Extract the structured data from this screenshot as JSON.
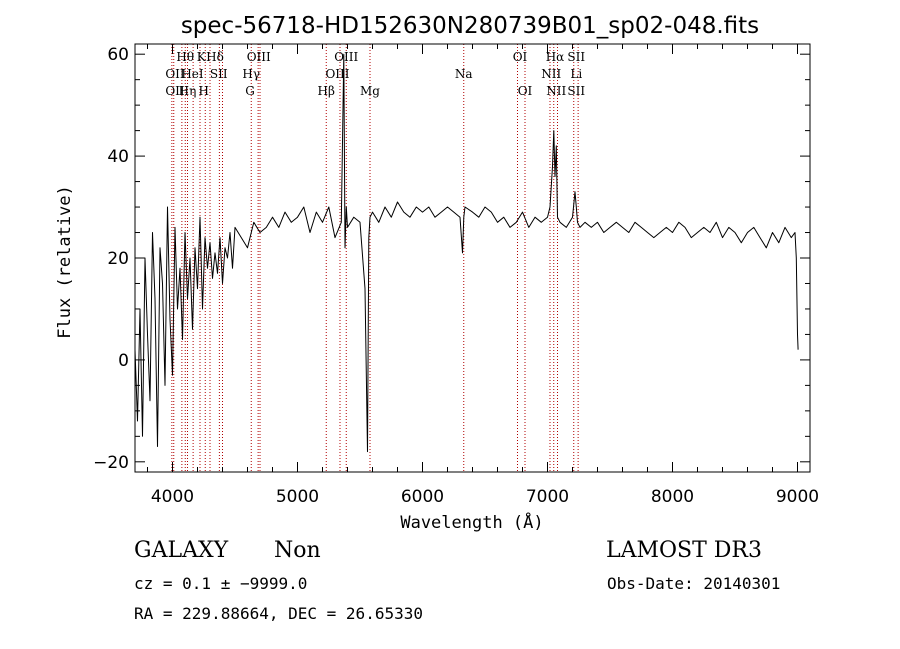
{
  "chart_data": {
    "type": "line",
    "title": "spec-56718-HD152630N280739B01_sp02-048.fits",
    "xlabel": "Wavelength (Å)",
    "ylabel": "Flux (relative)",
    "xlim": [
      3700,
      9100
    ],
    "ylim": [
      -22,
      62
    ],
    "x_ticks": [
      4000,
      5000,
      6000,
      7000,
      8000,
      9000
    ],
    "x_tick_labels": [
      "4000",
      "5000",
      "6000",
      "7000",
      "8000",
      "9000"
    ],
    "y_ticks": [
      -20,
      0,
      20,
      40,
      60
    ],
    "y_tick_labels": [
      "−20",
      "0",
      "20",
      "40",
      "60"
    ],
    "line_color": "#000000",
    "marker_color": "#b00000",
    "spectrum": {
      "x": [
        3700,
        3720,
        3740,
        3760,
        3780,
        3800,
        3820,
        3840,
        3860,
        3880,
        3900,
        3920,
        3940,
        3960,
        3980,
        4000,
        4020,
        4040,
        4060,
        4080,
        4100,
        4120,
        4140,
        4160,
        4180,
        4200,
        4220,
        4240,
        4260,
        4280,
        4300,
        4320,
        4340,
        4360,
        4380,
        4400,
        4420,
        4440,
        4460,
        4480,
        4500,
        4550,
        4600,
        4650,
        4700,
        4750,
        4800,
        4850,
        4900,
        4950,
        5000,
        5050,
        5100,
        5150,
        5200,
        5250,
        5300,
        5350,
        5370,
        5380,
        5390,
        5400,
        5450,
        5500,
        5540,
        5560,
        5570,
        5580,
        5600,
        5650,
        5700,
        5750,
        5800,
        5850,
        5900,
        5950,
        6000,
        6050,
        6100,
        6150,
        6200,
        6250,
        6300,
        6320,
        6330,
        6340,
        6400,
        6450,
        6500,
        6550,
        6600,
        6650,
        6700,
        6750,
        6800,
        6850,
        6900,
        6950,
        7000,
        7020,
        7040,
        7050,
        7060,
        7070,
        7080,
        7100,
        7150,
        7200,
        7220,
        7230,
        7240,
        7260,
        7300,
        7350,
        7400,
        7450,
        7500,
        7550,
        7600,
        7650,
        7700,
        7750,
        7800,
        7850,
        7900,
        7950,
        8000,
        8050,
        8100,
        8150,
        8200,
        8250,
        8300,
        8350,
        8400,
        8450,
        8500,
        8550,
        8600,
        8650,
        8700,
        8750,
        8800,
        8850,
        8900,
        8950,
        8980,
        8990,
        9000,
        9005
      ],
      "y": [
        2,
        -12,
        10,
        -15,
        20,
        5,
        -8,
        25,
        12,
        -17,
        22,
        15,
        -5,
        30,
        8,
        -3,
        26,
        10,
        18,
        4,
        25,
        12,
        20,
        6,
        22,
        14,
        28,
        10,
        24,
        18,
        23,
        16,
        21,
        17,
        24,
        15,
        22,
        20,
        25,
        18,
        26,
        24,
        22,
        27,
        25,
        26,
        28,
        26,
        29,
        27,
        28,
        30,
        25,
        29,
        27,
        30,
        24,
        27,
        60,
        22,
        30,
        26,
        28,
        27,
        14,
        -18,
        24,
        28,
        29,
        27,
        30,
        28,
        31,
        29,
        28,
        30,
        29,
        30,
        28,
        29,
        30,
        29,
        28,
        21,
        28,
        30,
        29,
        28,
        30,
        29,
        27,
        28,
        26,
        27,
        29,
        26,
        28,
        27,
        28,
        30,
        38,
        45,
        36,
        42,
        28,
        27,
        26,
        28,
        33,
        30,
        27,
        26,
        27,
        26,
        27,
        25,
        26,
        27,
        26,
        25,
        27,
        26,
        25,
        24,
        25,
        26,
        25,
        27,
        26,
        24,
        25,
        26,
        25,
        27,
        24,
        26,
        25,
        23,
        25,
        26,
        24,
        22,
        25,
        23,
        26,
        24,
        25,
        20,
        5,
        2
      ]
    },
    "line_labels": [
      {
        "x": 4102,
        "text": "Hθ",
        "row": 0
      },
      {
        "x": 4230,
        "text": "K",
        "row": 0
      },
      {
        "x": 4340,
        "text": "Hδ",
        "row": 0
      },
      {
        "x": 4690,
        "text": "OIII",
        "row": 0
      },
      {
        "x": 5390,
        "text": "OIII",
        "row": 0
      },
      {
        "x": 6780,
        "text": "OI",
        "row": 0
      },
      {
        "x": 7060,
        "text": "Hα",
        "row": 0
      },
      {
        "x": 7230,
        "text": "SII",
        "row": 0
      },
      {
        "x": 4020,
        "text": "OII",
        "row": 1
      },
      {
        "x": 4160,
        "text": "HeI",
        "row": 1
      },
      {
        "x": 4370,
        "text": "SII",
        "row": 1
      },
      {
        "x": 4630,
        "text": "Hγ",
        "row": 1
      },
      {
        "x": 5320,
        "text": "OIII",
        "row": 1
      },
      {
        "x": 6330,
        "text": "Na",
        "row": 1
      },
      {
        "x": 7030,
        "text": "NII",
        "row": 1
      },
      {
        "x": 7230,
        "text": "Li",
        "row": 1
      },
      {
        "x": 4020,
        "text": "OII",
        "row": 2
      },
      {
        "x": 4120,
        "text": "Hη",
        "row": 2
      },
      {
        "x": 4250,
        "text": "H",
        "row": 2
      },
      {
        "x": 4620,
        "text": "G",
        "row": 2
      },
      {
        "x": 5230,
        "text": "Hβ",
        "row": 2
      },
      {
        "x": 5580,
        "text": "Mg",
        "row": 2
      },
      {
        "x": 6820,
        "text": "OI",
        "row": 2
      },
      {
        "x": 7070,
        "text": "NII",
        "row": 2
      },
      {
        "x": 7230,
        "text": "SII",
        "row": 2
      }
    ],
    "marker_x": [
      3995,
      4010,
      4075,
      4102,
      4120,
      4165,
      4220,
      4262,
      4300,
      4375,
      4400,
      4630,
      4685,
      4700,
      5230,
      5340,
      5390,
      5580,
      6330,
      6760,
      6820,
      7020,
      7050,
      7080,
      7210,
      7245
    ]
  },
  "info": {
    "object_type": "GALAXY",
    "object_subclass": "Non",
    "survey": "LAMOST DR3",
    "cz": "cz = 0.1 ± −9999.0",
    "obs_date": "Obs-Date: 20140301",
    "ra_dec": "RA = 229.88664, DEC =  26.65330"
  }
}
